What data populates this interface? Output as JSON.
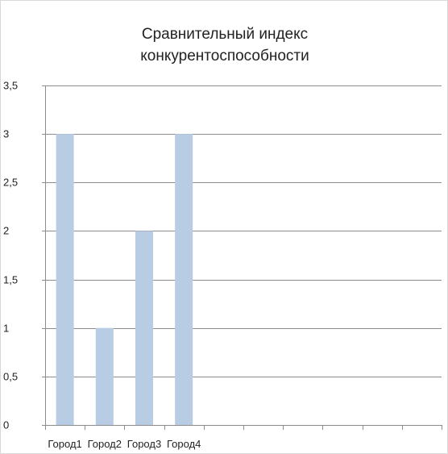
{
  "chart_data": {
    "type": "bar",
    "title_lines": [
      "Сравнительный индекс",
      "конкурентоспособности"
    ],
    "categories": [
      "Город1",
      "Город2",
      "Город3",
      "Город4",
      "",
      "",
      "",
      "",
      "",
      ""
    ],
    "values": [
      3,
      1,
      2,
      3,
      null,
      null,
      null,
      null,
      null,
      null
    ],
    "yticks": [
      "0",
      "0,5",
      "1",
      "1,5",
      "2",
      "2,5",
      "3",
      "3,5"
    ],
    "ylim": [
      0,
      3.5
    ],
    "grid": true,
    "bar_color": "#b8cce4",
    "grid_color": "#8c8c8c"
  }
}
